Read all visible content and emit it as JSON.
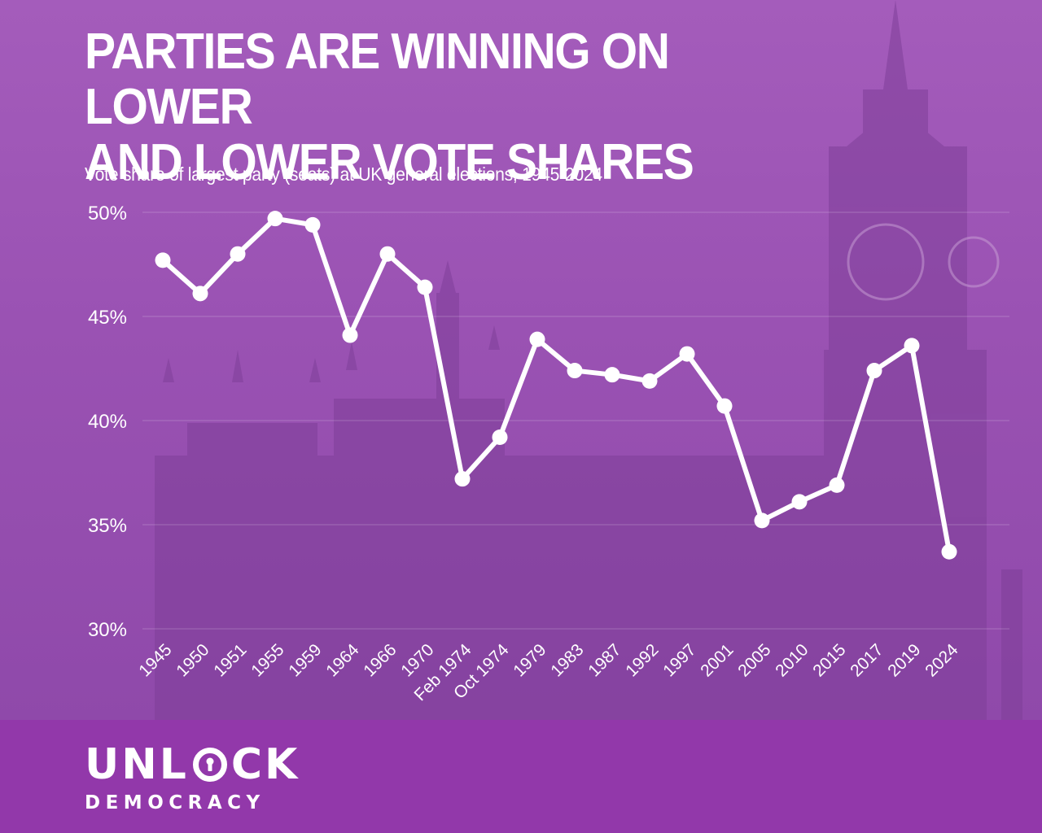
{
  "header": {
    "title": "PARTIES ARE WINNING ON LOWER\nAND LOWER VOTE SHARES",
    "subtitle": "Vote share of largest party (seats) at UK general elections, 1945-2024"
  },
  "chart_data": {
    "type": "line",
    "title": "PARTIES ARE WINNING ON LOWER AND LOWER VOTE SHARES",
    "subtitle": "Vote share of largest party (seats) at UK general elections, 1945-2024",
    "xlabel": "",
    "ylabel": "",
    "categories": [
      "1945",
      "1950",
      "1951",
      "1955",
      "1959",
      "1964",
      "1966",
      "1970",
      "Feb 1974",
      "Oct 1974",
      "1979",
      "1983",
      "1987",
      "1992",
      "1997",
      "2001",
      "2005",
      "2010",
      "2015",
      "2017",
      "2019",
      "2024"
    ],
    "series": [
      {
        "values": [
          47.7,
          46.1,
          48.0,
          49.7,
          49.4,
          44.1,
          48.0,
          46.4,
          37.2,
          39.2,
          43.9,
          42.4,
          42.2,
          41.9,
          43.2,
          40.7,
          35.2,
          36.1,
          36.9,
          42.4,
          43.6,
          33.7
        ]
      }
    ],
    "ylim": [
      30,
      50
    ],
    "yticks": [
      "30%",
      "35%",
      "40%",
      "45%",
      "50%"
    ],
    "grid": true,
    "line_color": "#ffffff"
  },
  "logo": {
    "word_before": "UNL",
    "word_after": "CK",
    "tagline": "DEMOCRACY",
    "lock_icon": "lock-icon"
  },
  "colors": {
    "background": "#9a4fb3",
    "footer": "#9238aa",
    "line": "#ffffff"
  }
}
